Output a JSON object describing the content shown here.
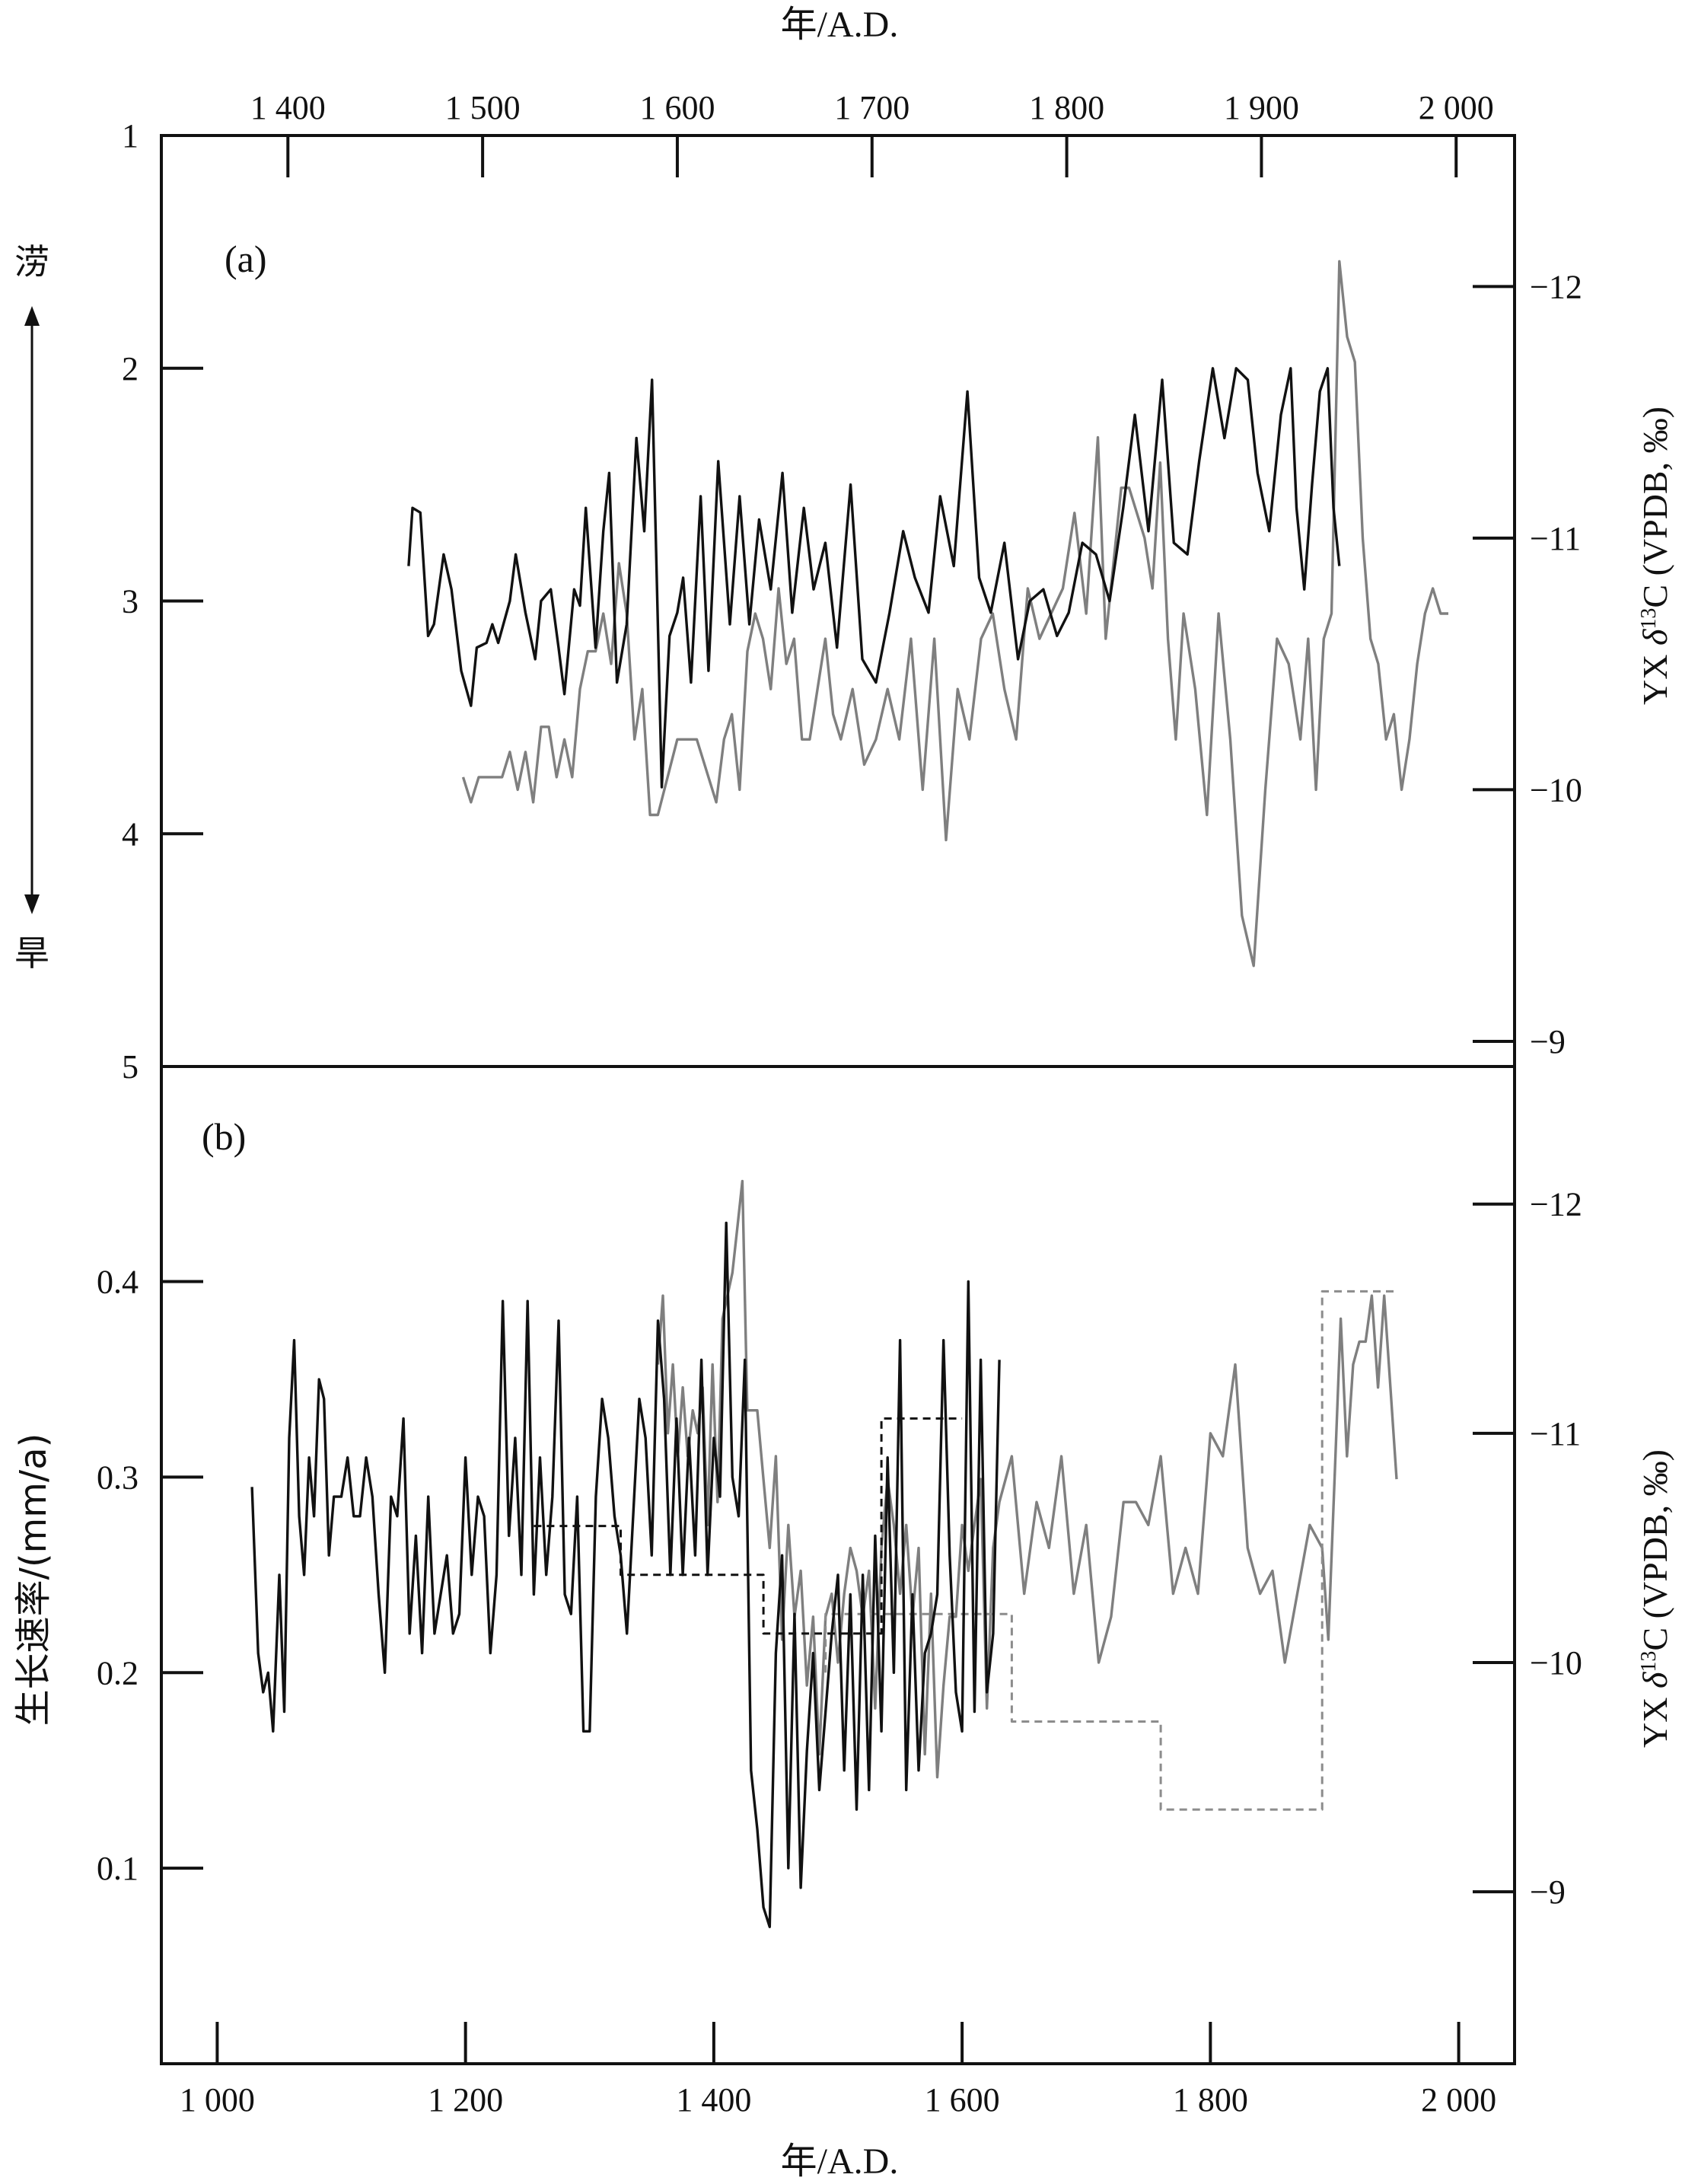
{
  "figure": {
    "top_axis_label": "年/A.D.",
    "bottom_axis_label": "年/A.D.",
    "left_a_wet": "涝",
    "left_a_dry": "旱",
    "left_b_label": "生长速率/(mm/a)",
    "right_label_prefix": "YX ",
    "right_label_delta": "δ",
    "right_label_sup": "13",
    "right_label_suffix": "C (VPDB, ‰)",
    "colors": {
      "black": "#111111",
      "gray": "#7f7f7f",
      "dashed_black": "#111111",
      "dashed_gray": "#8c8c8c"
    }
  },
  "chart_data": [
    {
      "type": "line",
      "panel_label": "(a)",
      "x_axis": {
        "label": "年/A.D.",
        "position": "top",
        "range": [
          1335,
          2030
        ],
        "ticks": [
          1400,
          1500,
          1600,
          1700,
          1800,
          1900,
          2000
        ],
        "tick_labels": [
          "1 400",
          "1 500",
          "1 600",
          "1 700",
          "1 800",
          "1 900",
          "2 000"
        ]
      },
      "left_axis": {
        "range": [
          5,
          1
        ],
        "inverted": true,
        "ticks": [
          1,
          2,
          3,
          4,
          5
        ],
        "tick_labels": [
          "1",
          "2",
          "3",
          "4",
          "5"
        ]
      },
      "right_axis": {
        "label": "YX δ13C (VPDB, ‰)",
        "range": [
          -8.9,
          -12.6
        ],
        "inverted": true,
        "ticks": [
          -12,
          -11,
          -10,
          -9
        ],
        "tick_labels": [
          "−12",
          "−11",
          "−10",
          "−9"
        ]
      },
      "series": [
        {
          "color": "black",
          "axis": "left",
          "x": [
            1462,
            1464,
            1468,
            1472,
            1475,
            1480,
            1484,
            1489,
            1494,
            1497,
            1502,
            1505,
            1508,
            1514,
            1517,
            1522,
            1527,
            1530,
            1535,
            1539,
            1542,
            1547,
            1550,
            1553,
            1558,
            1562,
            1565,
            1569,
            1574,
            1579,
            1583,
            1587,
            1592,
            1596,
            1600,
            1603,
            1607,
            1612,
            1616,
            1621,
            1627,
            1632,
            1637,
            1642,
            1648,
            1654,
            1659,
            1665,
            1670,
            1676,
            1682,
            1689,
            1695,
            1702,
            1709,
            1716,
            1722,
            1729,
            1735,
            1742,
            1749,
            1755,
            1761,
            1768,
            1775,
            1781,
            1788,
            1795,
            1801,
            1808,
            1815,
            1822,
            1829,
            1835,
            1842,
            1849,
            1855,
            1862,
            1868,
            1875,
            1881,
            1887,
            1893,
            1898,
            1904,
            1910,
            1915,
            1918,
            1922,
            1926,
            1930,
            1934,
            1937,
            1940
          ],
          "y": [
            2.85,
            2.6,
            2.62,
            3.15,
            3.1,
            2.8,
            2.95,
            3.3,
            3.45,
            3.2,
            3.18,
            3.1,
            3.18,
            3.0,
            2.8,
            3.05,
            3.25,
            3.0,
            2.95,
            3.2,
            3.4,
            2.95,
            3.02,
            2.6,
            3.2,
            2.7,
            2.45,
            3.35,
            3.1,
            2.3,
            2.7,
            2.05,
            3.8,
            3.15,
            3.05,
            2.9,
            3.35,
            2.55,
            3.3,
            2.4,
            3.1,
            2.55,
            3.1,
            2.65,
            2.95,
            2.45,
            3.05,
            2.6,
            2.95,
            2.75,
            3.2,
            2.5,
            3.25,
            3.35,
            3.05,
            2.7,
            2.9,
            3.05,
            2.55,
            2.85,
            2.1,
            2.9,
            3.05,
            2.75,
            3.25,
            3.0,
            2.95,
            3.15,
            3.05,
            2.75,
            2.8,
            3.0,
            2.6,
            2.2,
            2.7,
            2.05,
            2.75,
            2.8,
            2.4,
            2.0,
            2.3,
            2.0,
            2.05,
            2.45,
            2.7,
            2.2,
            2.0,
            2.6,
            2.95,
            2.5,
            2.1,
            2.0,
            2.6,
            2.85
          ]
        },
        {
          "color": "gray",
          "axis": "right",
          "x": [
            1490,
            1494,
            1498,
            1502,
            1506,
            1510,
            1514,
            1518,
            1522,
            1526,
            1530,
            1534,
            1538,
            1542,
            1546,
            1550,
            1554,
            1558,
            1562,
            1566,
            1570,
            1574,
            1578,
            1582,
            1586,
            1590,
            1600,
            1610,
            1620,
            1624,
            1628,
            1632,
            1636,
            1640,
            1644,
            1648,
            1652,
            1656,
            1660,
            1664,
            1668,
            1672,
            1676,
            1680,
            1684,
            1690,
            1696,
            1702,
            1708,
            1714,
            1720,
            1726,
            1732,
            1738,
            1744,
            1750,
            1756,
            1762,
            1768,
            1774,
            1780,
            1786,
            1792,
            1798,
            1804,
            1810,
            1816,
            1820,
            1824,
            1828,
            1832,
            1836,
            1840,
            1844,
            1848,
            1852,
            1856,
            1860,
            1866,
            1872,
            1878,
            1884,
            1890,
            1896,
            1902,
            1908,
            1914,
            1920,
            1924,
            1928,
            1932,
            1936,
            1940,
            1944,
            1948,
            1952,
            1956,
            1960,
            1964,
            1968,
            1972,
            1976,
            1980,
            1984,
            1988,
            1992,
            1996
          ],
          "y": [
            -10.05,
            -9.95,
            -10.05,
            -10.05,
            -10.05,
            -10.05,
            -10.15,
            -10.0,
            -10.15,
            -9.95,
            -10.25,
            -10.25,
            -10.05,
            -10.2,
            -10.05,
            -10.4,
            -10.55,
            -10.55,
            -10.7,
            -10.5,
            -10.9,
            -10.7,
            -10.2,
            -10.4,
            -9.9,
            -9.9,
            -10.2,
            -10.2,
            -9.95,
            -10.2,
            -10.3,
            -10.0,
            -10.55,
            -10.7,
            -10.6,
            -10.4,
            -10.8,
            -10.5,
            -10.6,
            -10.2,
            -10.2,
            -10.4,
            -10.6,
            -10.3,
            -10.2,
            -10.4,
            -10.1,
            -10.2,
            -10.4,
            -10.2,
            -10.6,
            -10.0,
            -10.6,
            -9.8,
            -10.4,
            -10.2,
            -10.6,
            -10.7,
            -10.4,
            -10.2,
            -10.8,
            -10.6,
            -10.7,
            -10.8,
            -11.1,
            -10.7,
            -11.4,
            -10.6,
            -10.9,
            -11.2,
            -11.2,
            -11.1,
            -11.0,
            -10.8,
            -11.3,
            -10.6,
            -10.2,
            -10.7,
            -10.4,
            -9.9,
            -10.7,
            -10.2,
            -9.5,
            -9.3,
            -10.0,
            -10.6,
            -10.5,
            -10.2,
            -10.6,
            -10.0,
            -10.6,
            -10.7,
            -12.1,
            -11.8,
            -11.7,
            -11.0,
            -10.6,
            -10.5,
            -10.2,
            -10.3,
            -10.0,
            -10.2,
            -10.5,
            -10.7,
            -10.8,
            -10.7,
            -10.7
          ]
        }
      ]
    },
    {
      "type": "line",
      "panel_label": "(b)",
      "x_axis": {
        "label": "年/A.D.",
        "position": "bottom",
        "range": [
          955,
          2045
        ],
        "ticks": [
          1000,
          1200,
          1400,
          1600,
          1800,
          2000
        ],
        "tick_labels": [
          "1 000",
          "1 200",
          "1 400",
          "1 600",
          "1 800",
          "2 000"
        ]
      },
      "left_axis": {
        "label": "生长速率/(mm/a)",
        "range": [
          0,
          0.51
        ],
        "ticks": [
          0.1,
          0.2,
          0.3,
          0.4
        ],
        "tick_labels": [
          "0.1",
          "0.2",
          "0.3",
          "0.4"
        ]
      },
      "right_axis": {
        "label": "YX δ13C (VPDB, ‰)",
        "range": [
          -8.25,
          -12.6
        ],
        "inverted": true,
        "ticks": [
          -12,
          -11,
          -10,
          -9
        ],
        "tick_labels": [
          "−12",
          "−11",
          "−10",
          "−9"
        ]
      },
      "series": [
        {
          "color": "black",
          "axis": "left",
          "x": [
            1028,
            1033,
            1037,
            1041,
            1045,
            1050,
            1054,
            1058,
            1062,
            1066,
            1070,
            1074,
            1078,
            1082,
            1086,
            1090,
            1094,
            1100,
            1105,
            1110,
            1115,
            1120,
            1125,
            1130,
            1135,
            1140,
            1145,
            1150,
            1155,
            1160,
            1165,
            1170,
            1175,
            1180,
            1185,
            1190,
            1195,
            1200,
            1205,
            1210,
            1215,
            1220,
            1225,
            1230,
            1235,
            1240,
            1245,
            1250,
            1255,
            1260,
            1265,
            1270,
            1275,
            1280,
            1285,
            1290,
            1295,
            1300,
            1305,
            1310,
            1315,
            1320,
            1325,
            1330,
            1335,
            1340,
            1345,
            1350,
            1355,
            1360,
            1365,
            1370,
            1375,
            1380,
            1385,
            1390,
            1395,
            1400,
            1405,
            1410,
            1415,
            1420,
            1425,
            1430,
            1435,
            1440,
            1445,
            1450,
            1455,
            1460,
            1465,
            1470,
            1475,
            1480,
            1485,
            1490,
            1495,
            1500,
            1505,
            1510,
            1515,
            1520,
            1525,
            1530,
            1535,
            1540,
            1545,
            1550,
            1555,
            1560,
            1565,
            1570,
            1575,
            1580,
            1585,
            1590,
            1595,
            1600,
            1605,
            1610,
            1615,
            1620,
            1625,
            1630
          ],
          "y": [
            0.295,
            0.21,
            0.19,
            0.2,
            0.17,
            0.25,
            0.18,
            0.32,
            0.37,
            0.28,
            0.25,
            0.31,
            0.28,
            0.35,
            0.34,
            0.26,
            0.29,
            0.29,
            0.31,
            0.28,
            0.28,
            0.31,
            0.29,
            0.24,
            0.2,
            0.29,
            0.28,
            0.33,
            0.22,
            0.27,
            0.21,
            0.29,
            0.22,
            0.24,
            0.26,
            0.22,
            0.23,
            0.31,
            0.25,
            0.29,
            0.28,
            0.21,
            0.25,
            0.39,
            0.27,
            0.32,
            0.25,
            0.39,
            0.24,
            0.31,
            0.25,
            0.29,
            0.38,
            0.24,
            0.23,
            0.29,
            0.17,
            0.17,
            0.29,
            0.34,
            0.32,
            0.28,
            0.26,
            0.22,
            0.28,
            0.34,
            0.32,
            0.26,
            0.38,
            0.34,
            0.25,
            0.33,
            0.25,
            0.32,
            0.26,
            0.36,
            0.25,
            0.32,
            0.29,
            0.43,
            0.3,
            0.28,
            0.36,
            0.15,
            0.12,
            0.08,
            0.07,
            0.21,
            0.26,
            0.1,
            0.23,
            0.09,
            0.16,
            0.21,
            0.14,
            0.18,
            0.22,
            0.25,
            0.15,
            0.24,
            0.13,
            0.25,
            0.14,
            0.27,
            0.17,
            0.31,
            0.2,
            0.37,
            0.14,
            0.24,
            0.15,
            0.21,
            0.22,
            0.24,
            0.37,
            0.26,
            0.19,
            0.17,
            0.4,
            0.18,
            0.36,
            0.19,
            0.22,
            0.36
          ]
        },
        {
          "color": "gray",
          "axis": "right",
          "x": [
            1355,
            1359,
            1363,
            1367,
            1371,
            1375,
            1379,
            1383,
            1387,
            1391,
            1395,
            1399,
            1403,
            1407,
            1411,
            1415,
            1419,
            1423,
            1427,
            1431,
            1435,
            1440,
            1445,
            1450,
            1455,
            1460,
            1465,
            1470,
            1475,
            1480,
            1485,
            1490,
            1495,
            1500,
            1505,
            1510,
            1515,
            1520,
            1525,
            1530,
            1535,
            1540,
            1545,
            1550,
            1555,
            1560,
            1565,
            1570,
            1575,
            1580,
            1585,
            1590,
            1595,
            1600,
            1605,
            1610,
            1615,
            1620,
            1625,
            1630,
            1640,
            1650,
            1660,
            1670,
            1680,
            1690,
            1700,
            1710,
            1720,
            1730,
            1740,
            1750,
            1760,
            1770,
            1780,
            1790,
            1800,
            1810,
            1820,
            1830,
            1840,
            1850,
            1860,
            1870,
            1880,
            1890,
            1895,
            1900,
            1905,
            1910,
            1915,
            1920,
            1925,
            1930,
            1935,
            1940,
            1945,
            1950
          ],
          "y": [
            -11.3,
            -11.6,
            -11.0,
            -11.3,
            -10.9,
            -11.2,
            -10.9,
            -11.1,
            -11.0,
            -11.2,
            -10.6,
            -11.3,
            -10.7,
            -11.5,
            -11.6,
            -11.7,
            -11.9,
            -12.1,
            -11.1,
            -11.1,
            -11.1,
            -10.8,
            -10.5,
            -10.9,
            -10.1,
            -10.6,
            -10.2,
            -10.4,
            -9.9,
            -10.2,
            -9.6,
            -10.2,
            -10.3,
            -10.0,
            -10.3,
            -10.5,
            -10.4,
            -10.2,
            -10.4,
            -9.8,
            -10.5,
            -10.8,
            -10.6,
            -10.3,
            -10.6,
            -10.2,
            -10.5,
            -9.6,
            -10.3,
            -9.5,
            -9.9,
            -10.2,
            -10.2,
            -10.6,
            -10.4,
            -10.6,
            -10.8,
            -9.8,
            -10.5,
            -10.7,
            -10.9,
            -10.3,
            -10.7,
            -10.5,
            -10.9,
            -10.3,
            -10.6,
            -10.0,
            -10.2,
            -10.7,
            -10.7,
            -10.6,
            -10.9,
            -10.3,
            -10.5,
            -10.3,
            -11.0,
            -10.9,
            -11.3,
            -10.5,
            -10.3,
            -10.4,
            -10.0,
            -10.3,
            -10.6,
            -10.5,
            -10.1,
            -10.8,
            -11.5,
            -10.9,
            -11.3,
            -11.4,
            -11.4,
            -11.6,
            -11.2,
            -11.6,
            -11.2,
            -10.8
          ]
        },
        {
          "color": "dashed_black",
          "axis": "left",
          "style": "dashed-step",
          "x": [
            1255,
            1325,
            1325,
            1440,
            1440,
            1535,
            1535,
            1600
          ],
          "y": [
            0.275,
            0.275,
            0.25,
            0.25,
            0.22,
            0.22,
            0.33,
            0.33
          ]
        },
        {
          "color": "dashed_gray",
          "axis": "left",
          "style": "dashed-step",
          "x": [
            1490,
            1490,
            1640,
            1640,
            1760,
            1760,
            1890,
            1890,
            1950
          ],
          "y": [
            0.2,
            0.23,
            0.23,
            0.175,
            0.175,
            0.13,
            0.13,
            0.395,
            0.395
          ]
        }
      ]
    }
  ]
}
